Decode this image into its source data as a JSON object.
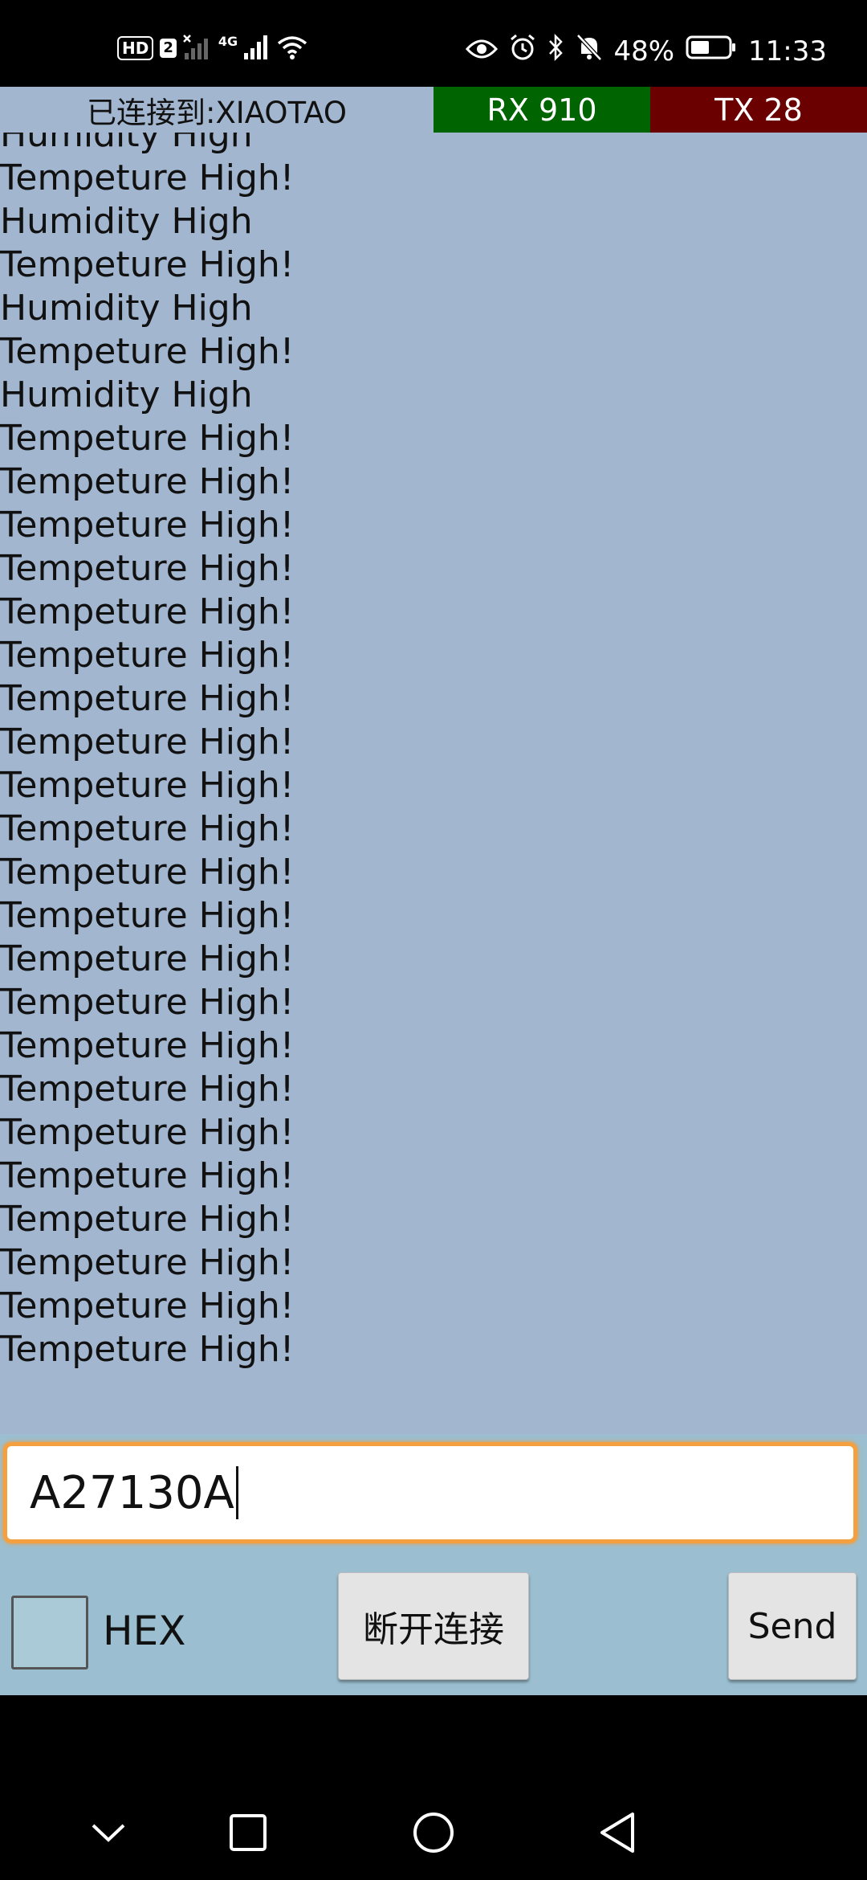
{
  "status_bar": {
    "hd_label": "HD",
    "sim_label": "2",
    "net_label": "4G",
    "battery_percent": "48%",
    "time": "11:33",
    "icons_left": [
      "signal-muted-icon",
      "signal-4g-icon",
      "wifi-icon"
    ],
    "icons_right": [
      "eye-icon",
      "alarm-icon",
      "bluetooth-icon",
      "mute-bell-icon",
      "battery-icon"
    ]
  },
  "header": {
    "connection_label": "已连接到:XIAOTAO",
    "rx_label": "RX 910",
    "tx_label": "TX 28",
    "rx_color": "#006400",
    "tx_color": "#6b0000"
  },
  "log": {
    "lines": [
      "Humidity High",
      "Tempeture High!",
      "Humidity High",
      "Tempeture High!",
      "Humidity High",
      "Tempeture High!",
      "Humidity High",
      "Tempeture High!",
      "Tempeture High!",
      "Tempeture High!",
      "Tempeture High!",
      "Tempeture High!",
      "Tempeture High!",
      "Tempeture High!",
      "Tempeture High!",
      "Tempeture High!",
      "Tempeture High!",
      "Tempeture High!",
      "Tempeture High!",
      "Tempeture High!",
      "Tempeture High!",
      "Tempeture High!",
      "Tempeture High!",
      "Tempeture High!",
      "Tempeture High!",
      "Tempeture High!",
      "Tempeture High!",
      "Tempeture High!",
      "Tempeture High!"
    ]
  },
  "input": {
    "value": "A27130A"
  },
  "controls": {
    "hex_label": "HEX",
    "disconnect_label": "断开连接",
    "send_label": "Send"
  },
  "nav": {
    "icons": [
      "chevron-down-icon",
      "recents-square-icon",
      "home-circle-icon",
      "back-triangle-icon"
    ]
  },
  "colors": {
    "log_background": "#a2b6cf",
    "panel_background": "#9bbfd0",
    "input_focus_border": "#f5a040"
  }
}
